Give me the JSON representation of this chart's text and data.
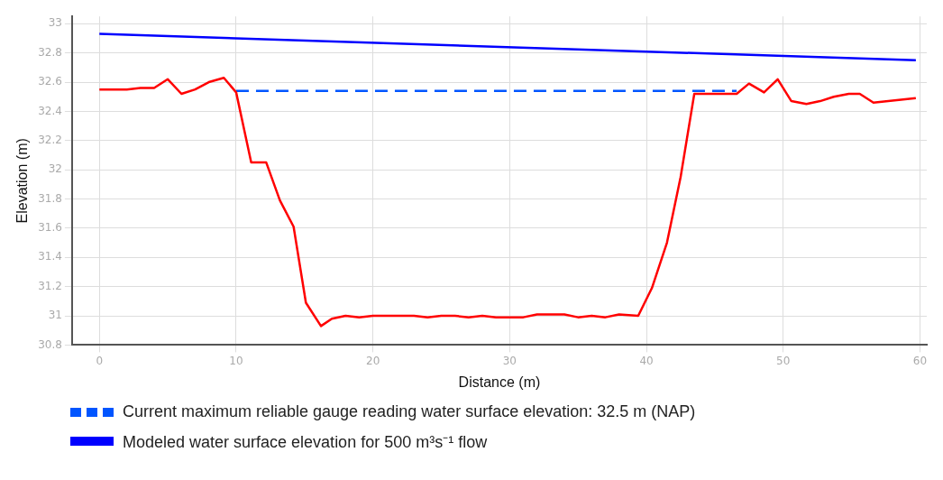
{
  "chart_data": {
    "type": "line",
    "xlabel": "Distance (m)",
    "ylabel": "Elevation (m)",
    "xlim": [
      -2,
      60.5
    ],
    "xticks": [
      0,
      10,
      20,
      30,
      40,
      50,
      60
    ],
    "ylim": [
      30.8,
      33.05
    ],
    "yticks": [
      30.8,
      31,
      31.2,
      31.4,
      31.6,
      31.8,
      32,
      32.2,
      32.4,
      32.6,
      32.8,
      33
    ],
    "grid": true,
    "legend": "bottom",
    "marker": "none",
    "series": [
      {
        "color": "#ff0000",
        "x": [
          0,
          2,
          3,
          4,
          5,
          6,
          7,
          8,
          9.1,
          10,
          11.1,
          12.2,
          13.2,
          14.2,
          15.1,
          16.2,
          17,
          18,
          19,
          20,
          22,
          23,
          24,
          25,
          26,
          27,
          28,
          29,
          30,
          31,
          32,
          33,
          34,
          35,
          36,
          37,
          38,
          39.4,
          40.4,
          41.5,
          42.5,
          43.5,
          46.6,
          47.5,
          48.6,
          49.6,
          50.6,
          51.7,
          52.7,
          53.7,
          54.8,
          55.6,
          56.6,
          59.7
        ],
        "values": [
          32.55,
          32.55,
          32.56,
          32.56,
          32.62,
          32.52,
          32.55,
          32.6,
          32.63,
          32.53,
          32.05,
          32.05,
          31.79,
          31.61,
          31.09,
          30.93,
          30.98,
          31,
          30.99,
          31,
          31,
          31,
          30.99,
          31,
          31,
          30.99,
          31,
          30.99,
          30.99,
          30.99,
          31.01,
          31.01,
          31.01,
          30.99,
          31,
          30.99,
          31.01,
          31,
          31.19,
          31.5,
          31.95,
          32.52,
          32.52,
          32.59,
          32.53,
          32.62,
          32.47,
          32.45,
          32.47,
          32.5,
          32.52,
          32.52,
          32.46,
          32.49
        ]
      },
      {
        "name": "Current maximum reliable gauge reading water surface elevation: 32.5 m (NAP)",
        "color": "#0055ff",
        "line_style": "dashed",
        "x": [
          10,
          46.6
        ],
        "values": [
          32.54,
          32.54
        ]
      },
      {
        "name": "Modeled water surface elevation for 500 m³s⁻¹ flow",
        "color": "#0000ff",
        "line_style": "solid",
        "x": [
          0,
          59.7
        ],
        "values": [
          32.93,
          32.75
        ]
      }
    ]
  }
}
